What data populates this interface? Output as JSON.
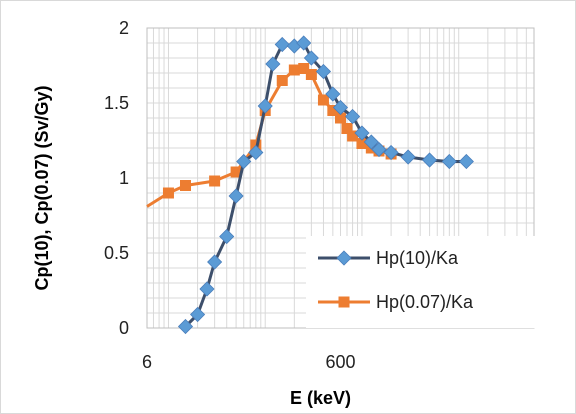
{
  "chart_data": {
    "type": "line",
    "xlabel": "E (keV)",
    "ylabel": "Cp(10), Cp(0.07) (Sv/Gy)",
    "x_scale": "log",
    "xlim": [
      6,
      60000
    ],
    "ylim": [
      0,
      2
    ],
    "x_ticks": [
      {
        "value": 6,
        "label": "6"
      },
      {
        "value": 600,
        "label": "600"
      }
    ],
    "y_ticks": [
      {
        "value": 0,
        "label": "0"
      },
      {
        "value": 0.5,
        "label": "0.5"
      },
      {
        "value": 1,
        "label": "1"
      },
      {
        "value": 1.5,
        "label": "1.5"
      },
      {
        "value": 2,
        "label": "2"
      }
    ],
    "grid": true,
    "legend_position": "bottom-right",
    "series": [
      {
        "name": "Hp(10)/Ka",
        "color": "#3d4f6b",
        "marker": "diamond",
        "marker_color": "#5b9bd5",
        "x": [
          15,
          20,
          25,
          30,
          40,
          50,
          60,
          80,
          100,
          120,
          150,
          200,
          250,
          300,
          400,
          500,
          600,
          800,
          1000,
          1250,
          1500,
          2000,
          3000,
          5000,
          8000,
          12000
        ],
        "y": [
          0.01,
          0.09,
          0.26,
          0.44,
          0.61,
          0.88,
          1.11,
          1.17,
          1.48,
          1.76,
          1.89,
          1.88,
          1.9,
          1.8,
          1.71,
          1.56,
          1.47,
          1.41,
          1.3,
          1.24,
          1.19,
          1.17,
          1.14,
          1.12,
          1.11,
          1.11
        ]
      },
      {
        "name": "Hp(0.07)/Ka",
        "color": "#ed7d31",
        "marker": "square",
        "marker_color": "#ed7d31",
        "x": [
          6,
          10,
          15,
          30,
          50,
          80,
          100,
          150,
          200,
          250,
          300,
          400,
          500,
          600,
          700,
          800,
          1000,
          1250,
          1500,
          2000
        ],
        "y": [
          0.81,
          0.9,
          0.95,
          0.98,
          1.04,
          1.22,
          1.45,
          1.65,
          1.72,
          1.73,
          1.69,
          1.52,
          1.45,
          1.4,
          1.33,
          1.28,
          1.23,
          1.2,
          1.18,
          1.16
        ]
      }
    ]
  }
}
